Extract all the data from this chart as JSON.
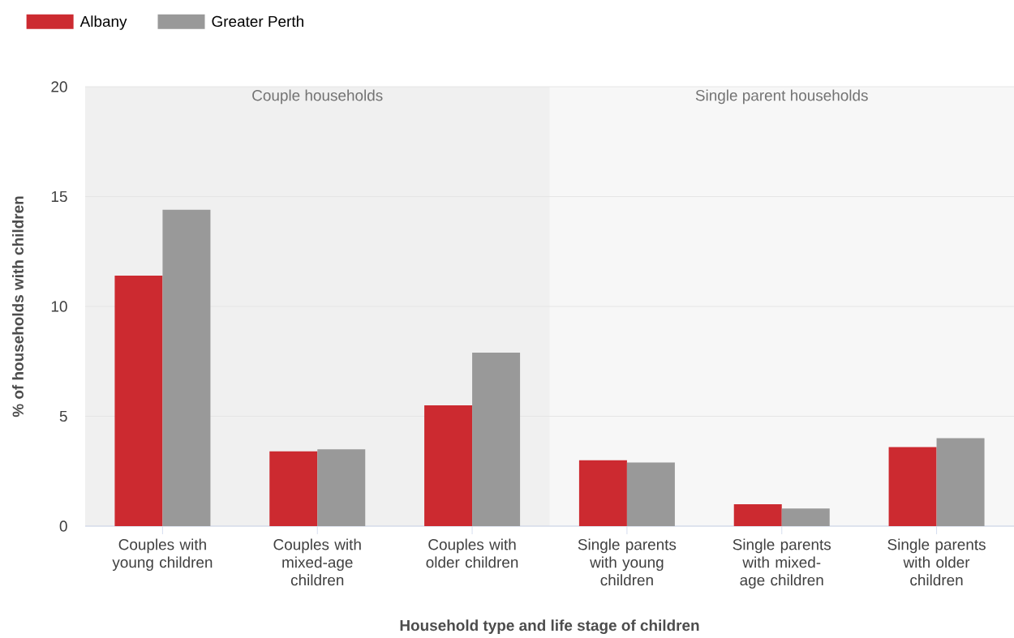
{
  "chart_data": {
    "type": "bar",
    "xlabel": "Household type and life stage of children",
    "ylabel": "% of households with children",
    "categories": [
      "Couples with young children",
      "Couples with mixed-age children",
      "Couples with older children",
      "Single parents with young children",
      "Single parents with mixed-age children",
      "Single parents with older children"
    ],
    "series": [
      {
        "name": "Albany",
        "color": "#cc2a30",
        "values": [
          11.4,
          3.4,
          5.5,
          3.0,
          1.0,
          3.6
        ]
      },
      {
        "name": "Greater Perth",
        "color": "#999999",
        "values": [
          14.4,
          3.5,
          7.9,
          2.9,
          0.8,
          4.0
        ]
      }
    ],
    "bands": [
      {
        "axis": "x",
        "from": "Couples with young children",
        "to": "Couples with older children",
        "label": "Couple households",
        "color": "#f0f0f0"
      },
      {
        "axis": "x",
        "from": "Single parents with young children",
        "to": "Single parents with older children",
        "label": "Single parent households",
        "color": "#f7f7f7"
      }
    ],
    "ylim": [
      0,
      20
    ],
    "yticks": [
      0,
      5,
      10,
      15,
      20
    ],
    "grid": "y",
    "legend": "top left"
  }
}
